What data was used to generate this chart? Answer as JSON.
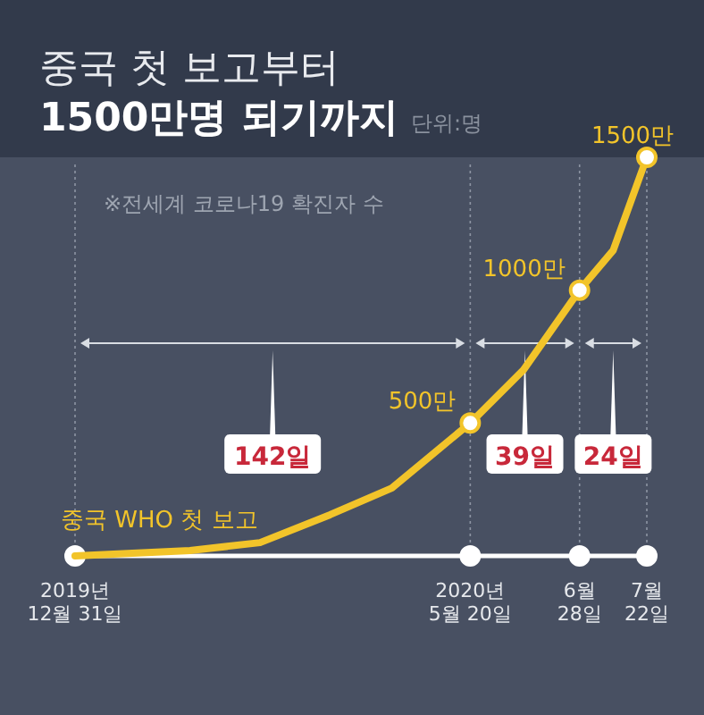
{
  "chart_data": {
    "type": "line",
    "title": "중국 첫 보고부터",
    "subtitle": "1500만명 되기까지",
    "ylabel": "단위:명",
    "series": [
      {
        "type": "scatter",
        "color": "#ffffff",
        "x": [
          "2019-12-31",
          "2020-05-20",
          "2020-06-28",
          "2020-07-22"
        ],
        "values": [
          0,
          0,
          0,
          0
        ],
        "marker": "circle"
      },
      {
        "color": "#f2c42a",
        "x": [
          "2019-12-31",
          "2020-02-10",
          "2020-03-06",
          "2020-03-31",
          "2020-04-22",
          "2020-05-20",
          "2020-06-08",
          "2020-06-28",
          "2020-07-10",
          "2020-07-22"
        ],
        "values": [
          0,
          20,
          50,
          155,
          255,
          500,
          700,
          1000,
          1150,
          1500
        ],
        "marker": "none"
      },
      {
        "type": "scatter",
        "color": "#f2c42a",
        "x": [
          "2020-05-20",
          "2020-06-28",
          "2020-07-22"
        ],
        "values": [
          500,
          1000,
          1500
        ],
        "value_labels": [
          "500만",
          "1000만",
          "1500만"
        ],
        "marker": "circle"
      }
    ],
    "xlim": [
      "2019-12-31",
      "2020-07-22"
    ],
    "ylim": [
      0,
      1500
    ],
    "xticks": [
      {
        "value": "2019-12-31",
        "label": "2019년\n12월 31일"
      },
      {
        "value": "2020-05-20",
        "label": "2020년\n5월 20일"
      },
      {
        "value": "2020-06-28",
        "label": "6월\n28일"
      },
      {
        "value": "2020-07-22",
        "label": "7월\n22일"
      }
    ],
    "tick_labels": "x",
    "grid": "x",
    "line_style": "solid",
    "annotations": [
      "※전세계 코로나19 확진자 수",
      "142일",
      "39일",
      "24일",
      {
        "text": "중국 WHO 첫 보고",
        "x": "2019-12-31",
        "y": 0
      }
    ]
  }
}
